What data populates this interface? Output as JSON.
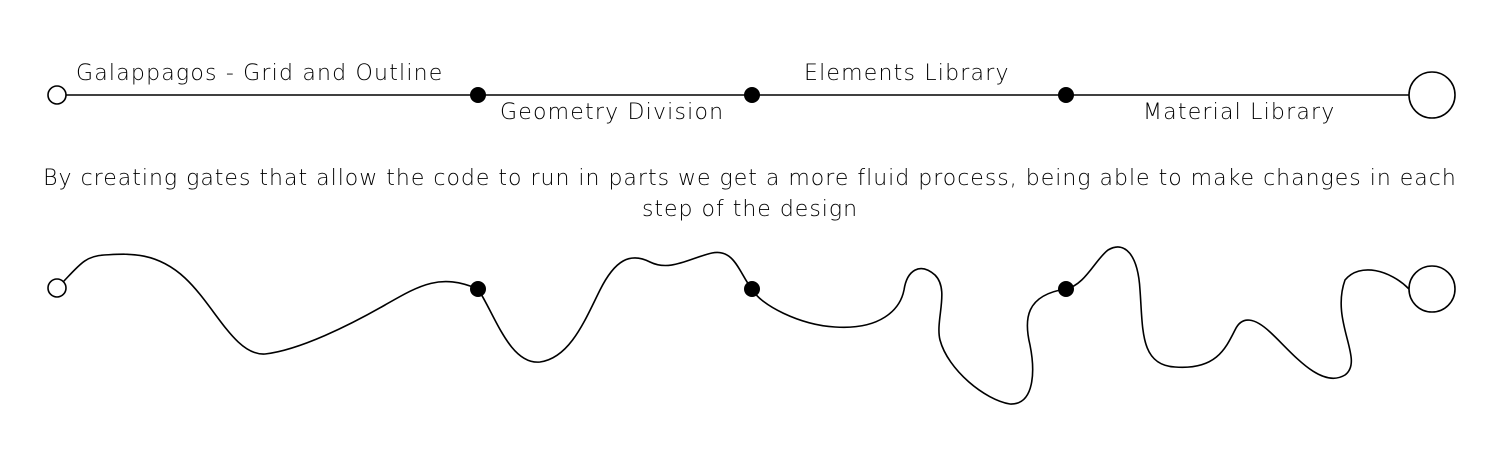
{
  "stages": [
    {
      "label": "Galappagos - Grid and Outline"
    },
    {
      "label": "Geometry Division"
    },
    {
      "label": "Elements Library"
    },
    {
      "label": "Material Library"
    }
  ],
  "description": "By creating gates that allow the code to run in parts we get a more fluid process, being able to make changes in each step of the design",
  "colors": {
    "line": "#000000",
    "background": "#ffffff"
  }
}
